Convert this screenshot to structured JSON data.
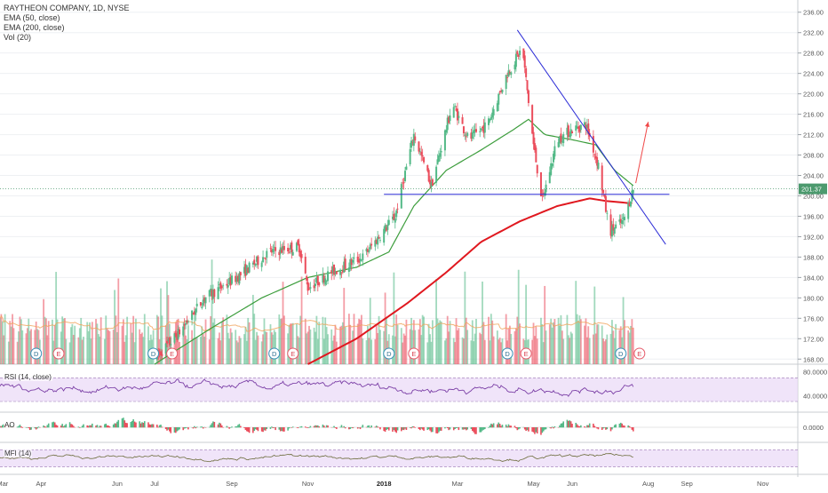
{
  "header": {
    "title": "RAYTHEON COMPANY, 1D, NYSE",
    "ema50": "EMA (50, close)",
    "ema200": "EMA (200, close)",
    "vol": "Vol (20)"
  },
  "panes": {
    "rsi_label": "RSI (14, close)",
    "ao_label": "AO",
    "mfi_label": "MFI (14)"
  },
  "colors": {
    "up": "#53b987",
    "down": "#eb4d5c",
    "ema50": "#3c9d3c",
    "ema200": "#e0181f",
    "trend": "#2b2bd6",
    "arrow": "#f04848",
    "osc": "#7b3fa6",
    "band": "#ead9f7",
    "price_tag": "#4c9a6e"
  },
  "chart_data": {
    "type": "candlestick",
    "title": "RAYTHEON COMPANY, 1D, NYSE",
    "price_axis": {
      "ticks": [
        "236.00",
        "232.00",
        "228.00",
        "224.00",
        "220.00",
        "216.00",
        "212.00",
        "208.00",
        "204.00",
        "200.00",
        "196.00",
        "192.00",
        "188.00",
        "184.00",
        "180.00",
        "176.00",
        "172.00",
        "168.00"
      ],
      "range": [
        167,
        237
      ],
      "last_price": "201.37"
    },
    "x_axis": {
      "labels": [
        "Mar",
        "Apr",
        "Jun",
        "Jul",
        "Sep",
        "Nov",
        "2018",
        "Mar",
        "May",
        "Jun",
        "Aug",
        "Sep",
        "Nov"
      ]
    },
    "price_anchors": [
      [
        "2017-07-01",
        168
      ],
      [
        "2017-07-20",
        173
      ],
      [
        "2017-08-10",
        180
      ],
      [
        "2017-09-05",
        184
      ],
      [
        "2017-10-01",
        189
      ],
      [
        "2017-10-25",
        190
      ],
      [
        "2017-11-01",
        182
      ],
      [
        "2017-11-20",
        185
      ],
      [
        "2017-12-15",
        188
      ],
      [
        "2018-01-10",
        196
      ],
      [
        "2018-01-25",
        212
      ],
      [
        "2018-02-08",
        202
      ],
      [
        "2018-02-25",
        218
      ],
      [
        "2018-03-10",
        211
      ],
      [
        "2018-03-25",
        214
      ],
      [
        "2018-04-10",
        224
      ],
      [
        "2018-04-22",
        229
      ],
      [
        "2018-05-01",
        210
      ],
      [
        "2018-05-08",
        199
      ],
      [
        "2018-05-20",
        211
      ],
      [
        "2018-06-01",
        213
      ],
      [
        "2018-06-12",
        214
      ],
      [
        "2018-06-22",
        206
      ],
      [
        "2018-07-01",
        193
      ],
      [
        "2018-07-12",
        195
      ],
      [
        "2018-07-20",
        201.4
      ]
    ],
    "ema50_anchors": [
      [
        "2017-07-01",
        167
      ],
      [
        "2017-08-15",
        174
      ],
      [
        "2017-09-25",
        180
      ],
      [
        "2017-11-01",
        184
      ],
      [
        "2017-12-10",
        186
      ],
      [
        "2018-01-05",
        189
      ],
      [
        "2018-01-25",
        198
      ],
      [
        "2018-02-20",
        205
      ],
      [
        "2018-03-20",
        209
      ],
      [
        "2018-04-15",
        213
      ],
      [
        "2018-04-27",
        215
      ],
      [
        "2018-05-10",
        212
      ],
      [
        "2018-06-01",
        211
      ],
      [
        "2018-06-20",
        210
      ],
      [
        "2018-07-05",
        205
      ],
      [
        "2018-07-20",
        202
      ]
    ],
    "ema200_anchors": [
      [
        "2017-11-01",
        167
      ],
      [
        "2017-12-10",
        172
      ],
      [
        "2018-01-20",
        179
      ],
      [
        "2018-02-20",
        185
      ],
      [
        "2018-03-20",
        191
      ],
      [
        "2018-04-20",
        195
      ],
      [
        "2018-05-20",
        198
      ],
      [
        "2018-06-15",
        199.5
      ],
      [
        "2018-06-28",
        199
      ],
      [
        "2018-07-20",
        198.5
      ]
    ],
    "volume_range": [
      0,
      100
    ],
    "rsi_axis": {
      "ticks": [
        "80.0000",
        "40.0000"
      ],
      "range": [
        15,
        90
      ],
      "band": [
        30,
        70
      ]
    },
    "ao_axis": {
      "ticks": [
        "0.0000"
      ]
    },
    "mfi_band": [
      20,
      80
    ],
    "events": [
      {
        "date": "2017-03-28",
        "type": "D"
      },
      {
        "date": "2017-04-15",
        "type": "E"
      },
      {
        "date": "2017-06-30",
        "type": "D"
      },
      {
        "date": "2017-07-15",
        "type": "E"
      },
      {
        "date": "2017-10-05",
        "type": "D"
      },
      {
        "date": "2017-10-20",
        "type": "E"
      },
      {
        "date": "2018-01-05",
        "type": "D"
      },
      {
        "date": "2018-01-25",
        "type": "E"
      },
      {
        "date": "2018-04-10",
        "type": "D"
      },
      {
        "date": "2018-04-25",
        "type": "E"
      },
      {
        "date": "2018-07-10",
        "type": "D"
      },
      {
        "date": "2018-07-25",
        "type": "E"
      }
    ],
    "annotations": {
      "support_line": {
        "from": "2018-01-01",
        "to": "2018-08-18",
        "price": 200.3
      },
      "trend_line": {
        "from": [
          "2018-04-18",
          232.5
        ],
        "to": [
          "2018-08-15",
          190.5
        ]
      },
      "arrow": {
        "from": [
          "2018-07-22",
          202.5
        ],
        "to": [
          "2018-08-01",
          214.5
        ]
      }
    }
  }
}
